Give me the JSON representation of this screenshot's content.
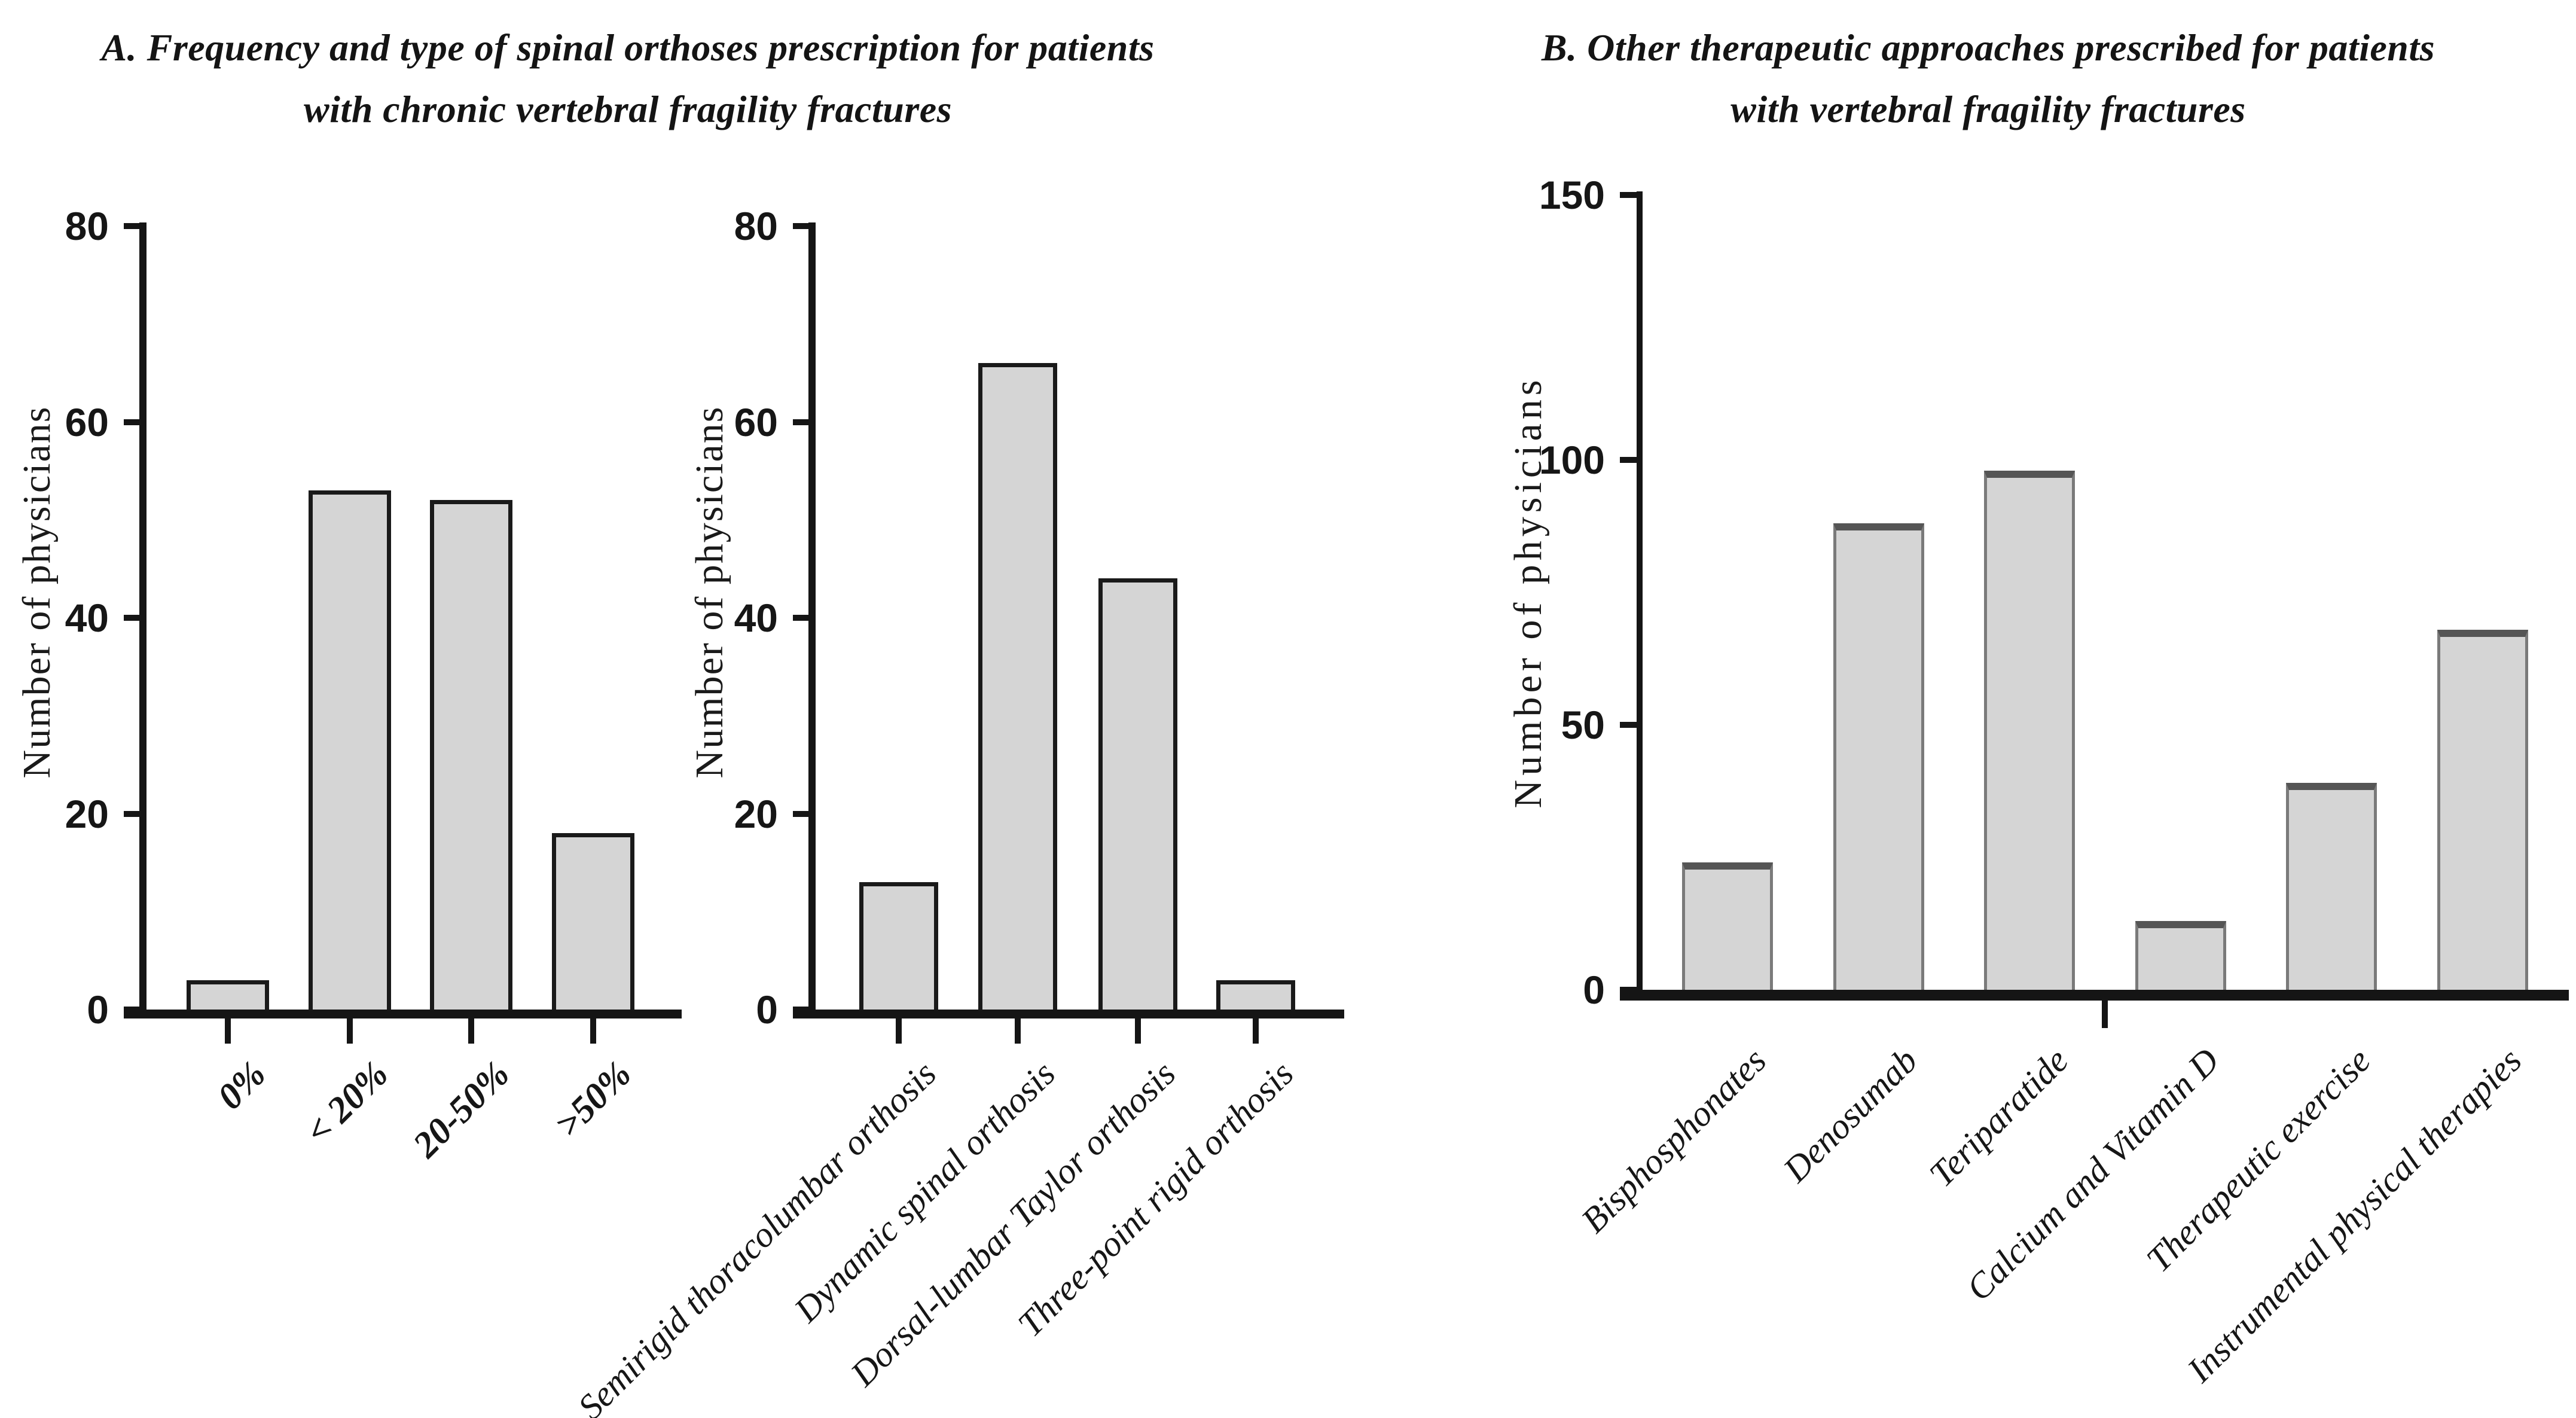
{
  "figure": {
    "panel_a_title": "A. Frequency and type of spinal orthoses prescription for patients\nwith chronic vertebral fragility fractures",
    "panel_b_title": "B. Other therapeutic approaches prescribed for patients\nwith vertebral fragility fractures"
  },
  "colors": {
    "background": "#ffffff",
    "axis": "#151515",
    "text": "#161616",
    "bar_fill": "#d5d5d5",
    "bar_border": "#1a1a1a",
    "bar_border_b": "#7a7a7a",
    "bar_top_b": "#555555"
  },
  "chart_data": [
    {
      "id": "orthoses-frequency",
      "type": "bar",
      "title": "",
      "xlabel": "",
      "ylabel": "Number of physicians",
      "ylim": [
        0,
        80
      ],
      "yticks": [
        0,
        20,
        40,
        60,
        80
      ],
      "grid": false,
      "legend": "none",
      "categories": [
        "0%",
        "< 20%",
        "20-50%",
        ">50%"
      ],
      "values": [
        3,
        53,
        52,
        18
      ]
    },
    {
      "id": "orthoses-type",
      "type": "bar",
      "title": "",
      "xlabel": "",
      "ylabel": "Number of physicians",
      "ylim": [
        0,
        80
      ],
      "yticks": [
        0,
        20,
        40,
        60,
        80
      ],
      "grid": false,
      "legend": "none",
      "categories": [
        "Semirigid thoracolumbar orthosis",
        "Dynamic spinal orthosis",
        "Dorsal-lumbar Taylor orthosis",
        "Three-point rigid orthosis"
      ],
      "values": [
        13,
        66,
        44,
        3
      ]
    },
    {
      "id": "other-therapies",
      "type": "bar",
      "title": "",
      "xlabel": "",
      "ylabel": "Number of physicians",
      "ylim": [
        0,
        150
      ],
      "yticks": [
        0,
        50,
        100,
        150
      ],
      "grid": false,
      "legend": "none",
      "categories": [
        "Bisphosphonates",
        "Denosumab",
        "Teriparatide",
        "Calcium and Vitamin D",
        "Therapeutic exercise",
        "Instrumental physical therapies"
      ],
      "values": [
        24,
        88,
        98,
        13,
        39,
        68
      ]
    }
  ]
}
